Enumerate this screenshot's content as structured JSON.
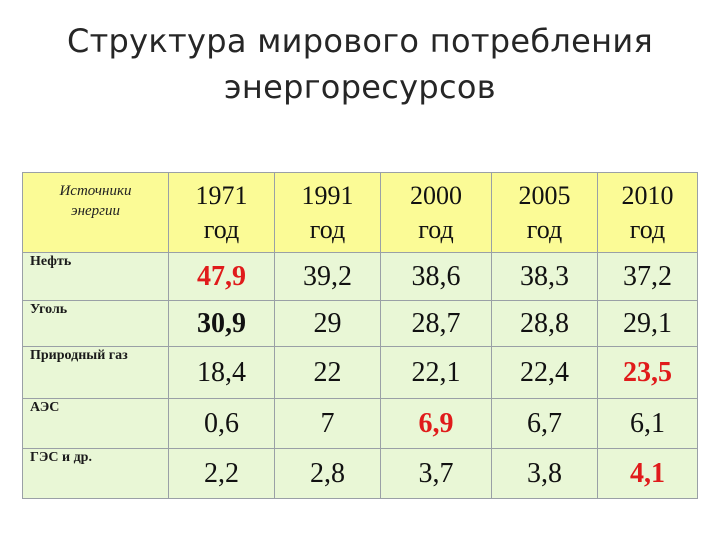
{
  "title": {
    "line1": "Структура мирового потребления",
    "line2": "энергоресурсов"
  },
  "table": {
    "source_header_line1": "Источники",
    "source_header_line2": "энергии",
    "years": [
      {
        "year": "1971",
        "unit": "год"
      },
      {
        "year": "1991",
        "unit": "год"
      },
      {
        "year": "2000",
        "unit": "год"
      },
      {
        "year": "2005",
        "unit": "год"
      },
      {
        "year": "2010",
        "unit": "год"
      }
    ],
    "rows": [
      {
        "source": "Нефть",
        "values": [
          "47,9",
          "39,2",
          "38,6",
          "38,3",
          "37,2"
        ]
      },
      {
        "source": "Уголь",
        "values": [
          "30,9",
          "29",
          "28,7",
          "28,8",
          "29,1"
        ]
      },
      {
        "source": "Природный газ",
        "values": [
          "18,4",
          "22",
          "22,1",
          "22,4",
          "23,5"
        ]
      },
      {
        "source": "АЭС",
        "values": [
          "0,6",
          "7",
          "6,9",
          "6,7",
          "6,1"
        ]
      },
      {
        "source": "ГЭС и др.",
        "values": [
          "2,2",
          "2,8",
          "3,7",
          "3,8",
          "4,1"
        ]
      }
    ],
    "highlight_color": "#e01b1b",
    "header_bg": "#fbfb96",
    "body_bg": "#e9f7d6"
  }
}
